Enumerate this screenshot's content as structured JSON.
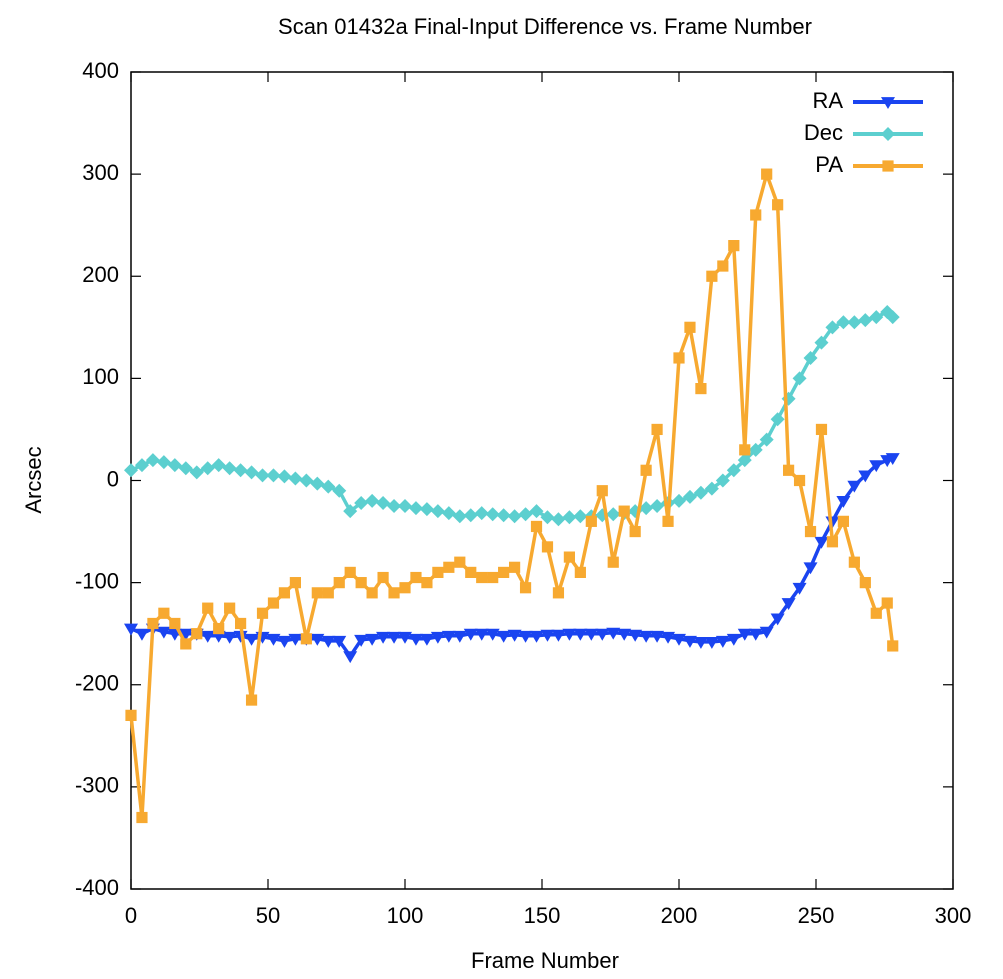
{
  "chart_data": {
    "type": "line",
    "title": "Scan 01432a Final-Input Difference vs. Frame Number",
    "x_label": "Frame Number",
    "y_label": "Arcsec",
    "xlim": [
      0,
      300
    ],
    "xticks": [
      0,
      50,
      100,
      150,
      200,
      250,
      300
    ],
    "ylim": [
      -400,
      400
    ],
    "yticks": [
      -400,
      -300,
      -200,
      -100,
      0,
      100,
      200,
      300,
      400
    ],
    "legend": "top-right",
    "x": [
      0,
      4,
      8,
      12,
      16,
      20,
      24,
      28,
      32,
      36,
      40,
      44,
      48,
      52,
      56,
      60,
      64,
      68,
      72,
      76,
      80,
      84,
      88,
      92,
      96,
      100,
      104,
      108,
      112,
      116,
      120,
      124,
      128,
      132,
      136,
      140,
      144,
      148,
      152,
      156,
      160,
      164,
      168,
      172,
      176,
      180,
      184,
      188,
      192,
      196,
      200,
      204,
      208,
      212,
      216,
      220,
      224,
      228,
      232,
      236,
      240,
      244,
      248,
      252,
      256,
      260,
      264,
      268,
      272,
      276,
      278
    ],
    "series": [
      {
        "name": "RA",
        "color": "#1a44f0",
        "marker": "triangle-down",
        "values": [
          -145,
          -150,
          -145,
          -148,
          -150,
          -150,
          -150,
          -152,
          -152,
          -153,
          -152,
          -155,
          -153,
          -155,
          -157,
          -155,
          -155,
          -155,
          -157,
          -157,
          -172,
          -156,
          -155,
          -153,
          -153,
          -153,
          -155,
          -155,
          -153,
          -152,
          -152,
          -150,
          -150,
          -150,
          -152,
          -151,
          -152,
          -152,
          -151,
          -151,
          -150,
          -150,
          -150,
          -150,
          -149,
          -150,
          -151,
          -152,
          -152,
          -153,
          -155,
          -157,
          -158,
          -158,
          -157,
          -155,
          -150,
          -150,
          -148,
          -135,
          -120,
          -105,
          -85,
          -60,
          -40,
          -20,
          -5,
          5,
          15,
          20,
          22
        ]
      },
      {
        "name": "Dec",
        "color": "#5ccfcf",
        "marker": "diamond",
        "values": [
          10,
          15,
          20,
          18,
          15,
          12,
          8,
          12,
          15,
          12,
          10,
          8,
          5,
          5,
          4,
          2,
          0,
          -3,
          -6,
          -10,
          -30,
          -22,
          -20,
          -22,
          -25,
          -25,
          -27,
          -28,
          -30,
          -32,
          -35,
          -34,
          -32,
          -33,
          -34,
          -35,
          -33,
          -30,
          -36,
          -38,
          -36,
          -35,
          -35,
          -34,
          -33,
          -32,
          -30,
          -27,
          -25,
          -22,
          -20,
          -16,
          -12,
          -8,
          0,
          10,
          20,
          30,
          40,
          60,
          80,
          100,
          120,
          135,
          150,
          155,
          155,
          157,
          160,
          165,
          160
        ]
      },
      {
        "name": "PA",
        "color": "#f7a930",
        "marker": "square",
        "values": [
          -230,
          -330,
          -140,
          -130,
          -140,
          -160,
          -150,
          -125,
          -145,
          -125,
          -140,
          -215,
          -130,
          -120,
          -110,
          -100,
          -155,
          -110,
          -110,
          -100,
          -90,
          -100,
          -110,
          -95,
          -110,
          -105,
          -95,
          -100,
          -90,
          -85,
          -80,
          -90,
          -95,
          -95,
          -90,
          -85,
          -105,
          -45,
          -65,
          -110,
          -75,
          -90,
          -40,
          -10,
          -80,
          -30,
          -50,
          10,
          50,
          -40,
          120,
          150,
          90,
          200,
          210,
          230,
          30,
          260,
          300,
          270,
          10,
          0,
          -50,
          50,
          -60,
          -40,
          -80,
          -100,
          -130,
          -120,
          -162
        ]
      }
    ]
  }
}
